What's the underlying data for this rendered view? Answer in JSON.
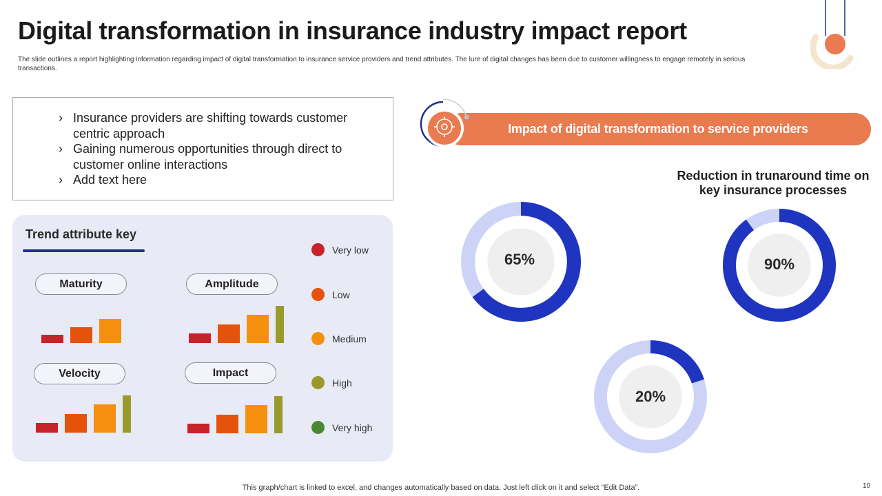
{
  "title": "Digital transformation in insurance industry impact report",
  "subtitle": "The slide outlines a report highlighting  information regarding impact of digital transformation to insurance service providers and trend attributes. The lure of digital changes has been due to customer willingness to engage remotely in serious transactions.",
  "bullets": [
    "Insurance providers are shifting towards customer centric approach",
    "Gaining numerous opportunities through direct to customer online interactions",
    "Add text here"
  ],
  "trend": {
    "title": "Trend attribute key",
    "pills": [
      "Maturity",
      "Amplitude",
      "Velocity",
      "Impact"
    ],
    "legend": [
      {
        "label": "Very low",
        "color": "#c8222a"
      },
      {
        "label": "Low",
        "color": "#e4520c"
      },
      {
        "label": "Medium",
        "color": "#f4900e"
      },
      {
        "label": "High",
        "color": "#9a9a2a"
      },
      {
        "label": "Very high",
        "color": "#4a8a2f"
      }
    ]
  },
  "chart_data": [
    {
      "type": "bar",
      "title": "Maturity",
      "categories": [
        "Very low",
        "Low",
        "Medium"
      ],
      "values": [
        1,
        2,
        3
      ],
      "colors": [
        "#c8222a",
        "#e4520c",
        "#f4900e"
      ]
    },
    {
      "type": "bar",
      "title": "Amplitude",
      "categories": [
        "Very low",
        "Low",
        "Medium",
        "High"
      ],
      "values": [
        1,
        2,
        3,
        4
      ],
      "colors": [
        "#c8222a",
        "#e4520c",
        "#f4900e",
        "#9a9a2a"
      ]
    },
    {
      "type": "bar",
      "title": "Velocity",
      "categories": [
        "Very low",
        "Low",
        "Medium",
        "High"
      ],
      "values": [
        1,
        2,
        3,
        4
      ],
      "colors": [
        "#c8222a",
        "#e4520c",
        "#f4900e",
        "#9a9a2a"
      ]
    },
    {
      "type": "bar",
      "title": "Impact",
      "categories": [
        "Very low",
        "Low",
        "Medium",
        "High"
      ],
      "values": [
        1,
        2,
        3,
        4
      ],
      "colors": [
        "#c8222a",
        "#e4520c",
        "#f4900e",
        "#9a9a2a"
      ]
    },
    {
      "type": "pie",
      "title": "Reduction in trunaround time on key insurance processes",
      "donuts": [
        {
          "value": 65,
          "label": "65%"
        },
        {
          "value": 90,
          "label": "90%"
        },
        {
          "value": 20,
          "label": "20%"
        }
      ],
      "colors": {
        "fill": "#1f35c0",
        "track": "#ccd3f7",
        "center": "#efefef"
      }
    }
  ],
  "impact": {
    "banner": "Impact of digital transformation to service providers",
    "reduction_title": "Reduction in trunaround time on key insurance processes"
  },
  "colors": {
    "accent": "#ea7a4f",
    "navy": "#1f2f8f",
    "donut_fill": "#1f35c0"
  },
  "footer": "This graph/chart is linked to excel,  and changes automatically based on data. Just left click on it and select “Edit Data”.",
  "page_number": "10"
}
